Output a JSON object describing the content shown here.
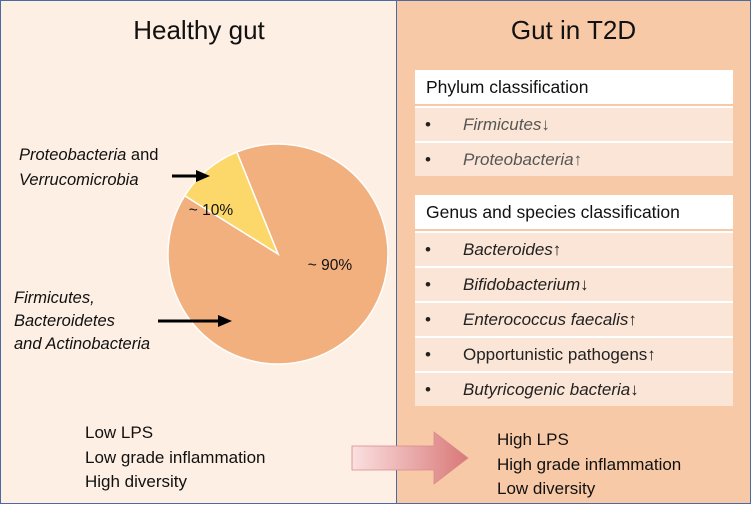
{
  "left_panel": {
    "title": "Healthy gut",
    "pie": {
      "slices": [
        {
          "label": "~ 90%",
          "value": 90,
          "color": "#f2b07e"
        },
        {
          "label": "~ 10%",
          "value": 10,
          "color": "#fcd86a"
        }
      ],
      "stroke": "#ffffff"
    },
    "label_minor": {
      "line1": "Proteobacteria",
      "and": " and",
      "line2": "Verrucomicrobia"
    },
    "label_major": {
      "line1": "Firmicutes,",
      "line2": "Bacteroidetes",
      "line3": "and Actinobacteria"
    },
    "summary": [
      "Low LPS",
      "Low grade inflammation",
      "High diversity"
    ]
  },
  "right_panel": {
    "title": "Gut in T2D",
    "phylum": {
      "header": "Phylum classification",
      "items": [
        {
          "bullet": "•",
          "text": "Firmicutes↓",
          "italic": true
        },
        {
          "bullet": "•",
          "text": "Proteobacteria↑",
          "italic": true
        }
      ]
    },
    "genus": {
      "header": "Genus and species classification",
      "items": [
        {
          "bullet": "•",
          "text": "Bacteroides↑",
          "italic": true
        },
        {
          "bullet": "•",
          "text": "Bifidobacterium↓",
          "italic": true
        },
        {
          "bullet": "•",
          "text": "Enterococcus faecalis↑",
          "italic": true
        },
        {
          "bullet": "•",
          "text": "Opportunistic pathogens↑",
          "italic": false
        },
        {
          "bullet": "•",
          "text": "Butyricogenic bacteria↓",
          "italic": true
        }
      ]
    },
    "summary": [
      "High LPS",
      "High grade inflammation",
      "Low diversity"
    ]
  },
  "colors": {
    "left_bg": "#fdefe3",
    "right_bg": "#f8c9a6",
    "border": "#4a6aa0",
    "transition_arrow": "#e08f8f"
  }
}
